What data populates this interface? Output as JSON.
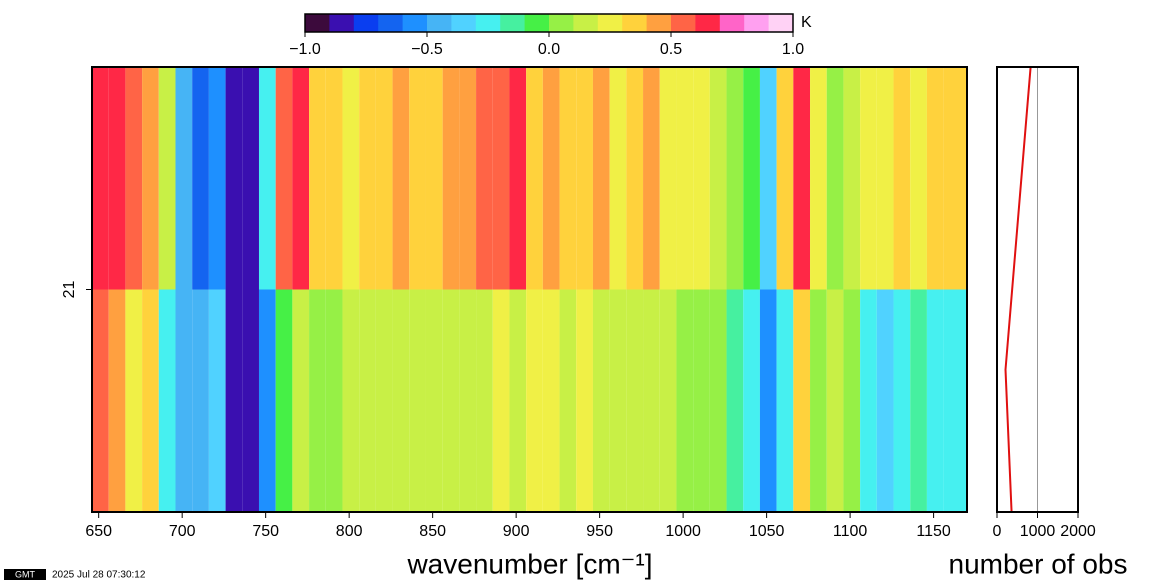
{
  "chart_data": [
    {
      "type": "heatmap",
      "x_label": "wavenumber [cm⁻¹]",
      "xlim": [
        646,
        1170
      ],
      "xticks": [
        650,
        700,
        750,
        800,
        850,
        900,
        950,
        1000,
        1050,
        1100,
        1150
      ],
      "ylim": [
        20.5,
        21.5
      ],
      "yticks": [
        21
      ],
      "x_edges": [
        646,
        656,
        666,
        676,
        686,
        696,
        706,
        716,
        726,
        736,
        746,
        756,
        766,
        776,
        786,
        796,
        806,
        816,
        826,
        836,
        846,
        856,
        866,
        876,
        886,
        896,
        906,
        916,
        926,
        936,
        946,
        956,
        966,
        976,
        986,
        996,
        1006,
        1016,
        1026,
        1036,
        1046,
        1056,
        1066,
        1076,
        1086,
        1096,
        1106,
        1116,
        1126,
        1136,
        1146,
        1156,
        1170
      ],
      "row_edges": [
        21.5,
        21,
        20.5
      ],
      "rows": [
        {
          "values": [
            0.6,
            0.6,
            0.5,
            0.4,
            0.1,
            -0.5,
            -0.7,
            -0.6,
            -0.8,
            -0.8,
            -0.3,
            0.5,
            0.6,
            0.3,
            0.3,
            0.25,
            0.3,
            0.3,
            0.4,
            0.3,
            0.3,
            0.4,
            0.45,
            0.5,
            0.55,
            0.6,
            0.3,
            0.4,
            0.35,
            0.3,
            0.4,
            0.2,
            0.35,
            0.4,
            0.25,
            0.25,
            0.2,
            0.15,
            0.0,
            -0.1,
            -0.4,
            0.3,
            0.6,
            0.2,
            0.05,
            0.15,
            0.2,
            0.25,
            0.3,
            0.25,
            0.3,
            0.3
          ]
        },
        {
          "values": [
            0.5,
            0.4,
            0.2,
            0.3,
            -0.3,
            -0.5,
            -0.5,
            -0.4,
            -0.8,
            -0.8,
            -0.6,
            -0.1,
            0.1,
            0.05,
            0.05,
            0.1,
            0.15,
            0.1,
            0.15,
            0.1,
            0.1,
            0.15,
            0.1,
            0.15,
            0.2,
            0.1,
            0.2,
            0.25,
            0.15,
            0.2,
            0.1,
            0.1,
            0.15,
            0.1,
            0.1,
            0.05,
            0.05,
            0.0,
            -0.2,
            -0.3,
            -0.6,
            -0.3,
            0.3,
            0.05,
            0.1,
            0.0,
            -0.3,
            -0.4,
            -0.3,
            -0.2,
            -0.25,
            -0.3
          ]
        }
      ],
      "colorbar": {
        "label": "K",
        "lim": [
          -1,
          1
        ],
        "colors": [
          "#3c0a3c",
          "#3a0fb0",
          "#0a3ef0",
          "#1464f0",
          "#1e90ff",
          "#46b4f5",
          "#50d2ff",
          "#46f0f0",
          "#46f0a0",
          "#46f046",
          "#96f046",
          "#c8f046",
          "#f0f046",
          "#ffd23c",
          "#ffa040",
          "#ff6446",
          "#ff2846",
          "#ff64c8",
          "#ffa0f0",
          "#ffd2f5"
        ],
        "ticks": [
          {
            "value": -1,
            "label": "−1.0"
          },
          {
            "value": -0.5,
            "label": "−0.5"
          },
          {
            "value": 0,
            "label": "0.0"
          },
          {
            "value": 0.5,
            "label": "0.5"
          },
          {
            "value": 1,
            "label": "1.0"
          }
        ]
      }
    },
    {
      "type": "line",
      "x_label": "number of obs",
      "values": [
        830,
        210,
        360
      ],
      "y": [
        21.5,
        20.82,
        20.5
      ],
      "color": "#e01010",
      "xlim": [
        0,
        2000
      ],
      "xticks": [
        0,
        1000,
        2000
      ],
      "ylim": [
        20.5,
        21.5
      ],
      "grid": true
    }
  ],
  "footer": {
    "logo": "GMT",
    "timestamp": "2025 Jul 28 07:30:12"
  }
}
